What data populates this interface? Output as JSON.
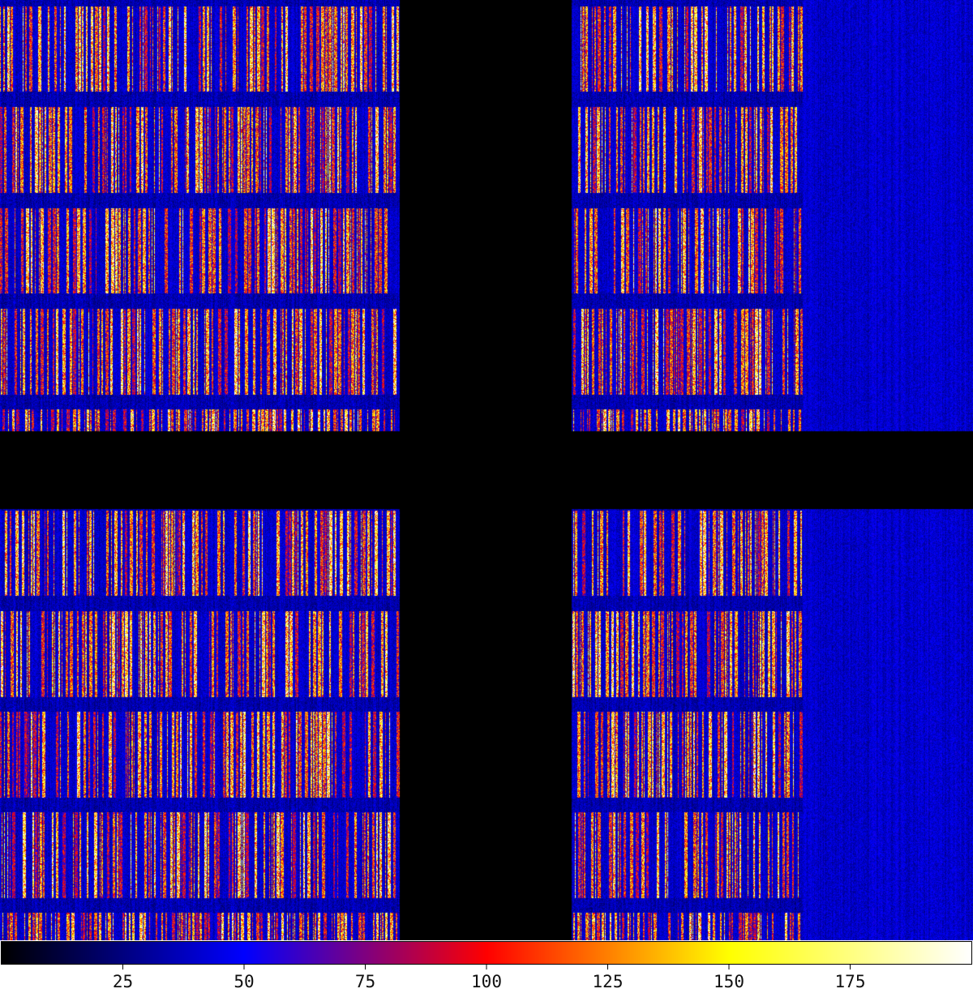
{
  "chart_data": {
    "type": "heatmap",
    "title": "",
    "xlabel": "",
    "ylabel": "",
    "colorbar": {
      "min": 0,
      "max": 200,
      "ticks": [
        25,
        50,
        75,
        100,
        125,
        150,
        175
      ],
      "tick_labels": [
        "25",
        "50",
        "75",
        "100",
        "125",
        "150",
        "175"
      ],
      "colormap_stops": [
        {
          "value": 0,
          "color": "#000000"
        },
        {
          "value": 50,
          "color": "#0000ff"
        },
        {
          "value": 100,
          "color": "#ff0000"
        },
        {
          "value": 150,
          "color": "#ffff00"
        },
        {
          "value": 200,
          "color": "#ffffff"
        }
      ]
    },
    "layout_description": {
      "detector_panels": 4,
      "gap_value": 0,
      "background_level_approx": 40,
      "stripe_level_range": [
        90,
        175
      ],
      "bands_per_panel": 5
    }
  }
}
